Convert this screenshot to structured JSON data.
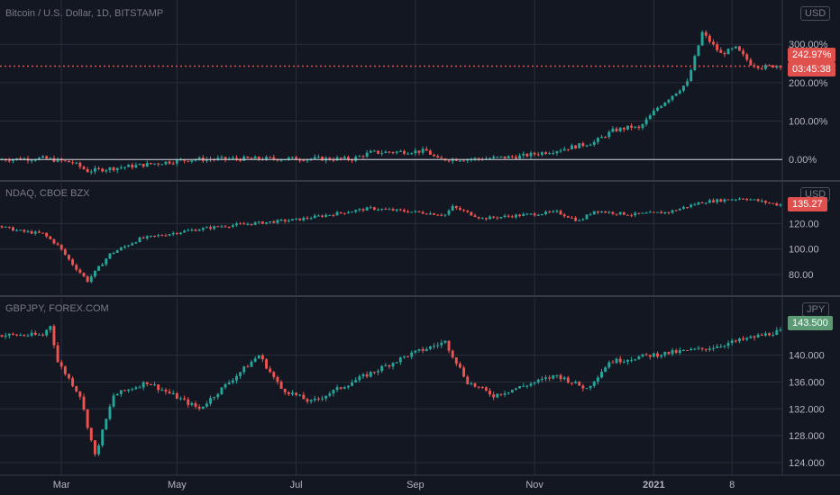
{
  "colors": {
    "background": "#131722",
    "grid": "#2a2e39",
    "separator": "#363a45",
    "text": "#b2b5be",
    "muted": "#787b86",
    "up": "#26a69a",
    "down": "#ef5350",
    "up_tag": "#5b9a74",
    "down_tag": "#e0504c"
  },
  "chart_data": [
    {
      "type": "candlestick",
      "title": "Bitcoin / U.S. Dollar, 1D, BITSTAMP",
      "currency": "USD",
      "scale": "percent",
      "y_ticks": [
        "300.00%",
        "200.00%",
        "100.00%",
        "0.00%"
      ],
      "ylim": [
        -30,
        345
      ],
      "zero_line": true,
      "last_value_label": "242.97%",
      "last_value": 242.97,
      "countdown_label": "03:45:38",
      "dotted_price_line": true,
      "path": [
        [
          0,
          0
        ],
        [
          12,
          3
        ],
        [
          20,
          -8
        ],
        [
          24,
          -30
        ],
        [
          38,
          -15
        ],
        [
          45,
          -7
        ],
        [
          52,
          0
        ],
        [
          68,
          2
        ],
        [
          85,
          2
        ],
        [
          95,
          1
        ],
        [
          100,
          18
        ],
        [
          115,
          22
        ],
        [
          118,
          0
        ],
        [
          130,
          2
        ],
        [
          140,
          8
        ],
        [
          150,
          24
        ],
        [
          160,
          45
        ],
        [
          165,
          75
        ],
        [
          170,
          85
        ],
        [
          172,
          80
        ],
        [
          177,
          135
        ],
        [
          185,
          200
        ],
        [
          189,
          330
        ],
        [
          194,
          275
        ],
        [
          198,
          290
        ],
        [
          202,
          250
        ],
        [
          205,
          240
        ],
        [
          209,
          245
        ]
      ]
    },
    {
      "type": "candlestick",
      "title": "NDAQ, CBOE BZX",
      "currency": "USD",
      "y_ticks": [
        "120.00",
        "100.00",
        "80.00"
      ],
      "ylim": [
        68,
        145
      ],
      "last_value_label": "135.27",
      "last_value": 135.27,
      "path": [
        [
          0,
          118
        ],
        [
          6,
          114
        ],
        [
          12,
          112
        ],
        [
          16,
          103
        ],
        [
          20,
          88
        ],
        [
          24,
          75
        ],
        [
          30,
          96
        ],
        [
          38,
          108
        ],
        [
          50,
          114
        ],
        [
          60,
          118
        ],
        [
          80,
          123
        ],
        [
          100,
          132
        ],
        [
          120,
          127
        ],
        [
          122,
          133
        ],
        [
          130,
          124
        ],
        [
          150,
          129
        ],
        [
          156,
          122
        ],
        [
          160,
          130
        ],
        [
          170,
          127
        ],
        [
          180,
          129
        ],
        [
          189,
          137
        ],
        [
          200,
          140
        ],
        [
          209,
          135
        ]
      ]
    },
    {
      "type": "candlestick",
      "title": "GBPJPY, FOREX.COM",
      "currency": "JPY",
      "y_ticks": [
        "140.000",
        "136.000",
        "132.000",
        "128.000",
        "124.000"
      ],
      "ylim": [
        122.5,
        146
      ],
      "last_value_label": "143.500",
      "last_value": 143.5,
      "path": [
        [
          0,
          143
        ],
        [
          12,
          143
        ],
        [
          14,
          144.5
        ],
        [
          16,
          139
        ],
        [
          22,
          134
        ],
        [
          26,
          125
        ],
        [
          31,
          134
        ],
        [
          40,
          136
        ],
        [
          54,
          132
        ],
        [
          62,
          136
        ],
        [
          70,
          140
        ],
        [
          76,
          135
        ],
        [
          84,
          133
        ],
        [
          95,
          136
        ],
        [
          110,
          140
        ],
        [
          120,
          142
        ],
        [
          126,
          136
        ],
        [
          133,
          134
        ],
        [
          150,
          137
        ],
        [
          158,
          135
        ],
        [
          164,
          139
        ],
        [
          175,
          140
        ],
        [
          190,
          141
        ],
        [
          209,
          143.5
        ]
      ]
    }
  ],
  "x_axis": {
    "labels": [
      {
        "text": "Mar",
        "day": 16
      },
      {
        "text": "May",
        "day": 47
      },
      {
        "text": "Jul",
        "day": 79
      },
      {
        "text": "Sep",
        "day": 111
      },
      {
        "text": "Nov",
        "day": 143
      },
      {
        "text": "2021",
        "day": 175
      },
      {
        "text": "8",
        "day": 196
      }
    ],
    "n_bars": 210
  }
}
